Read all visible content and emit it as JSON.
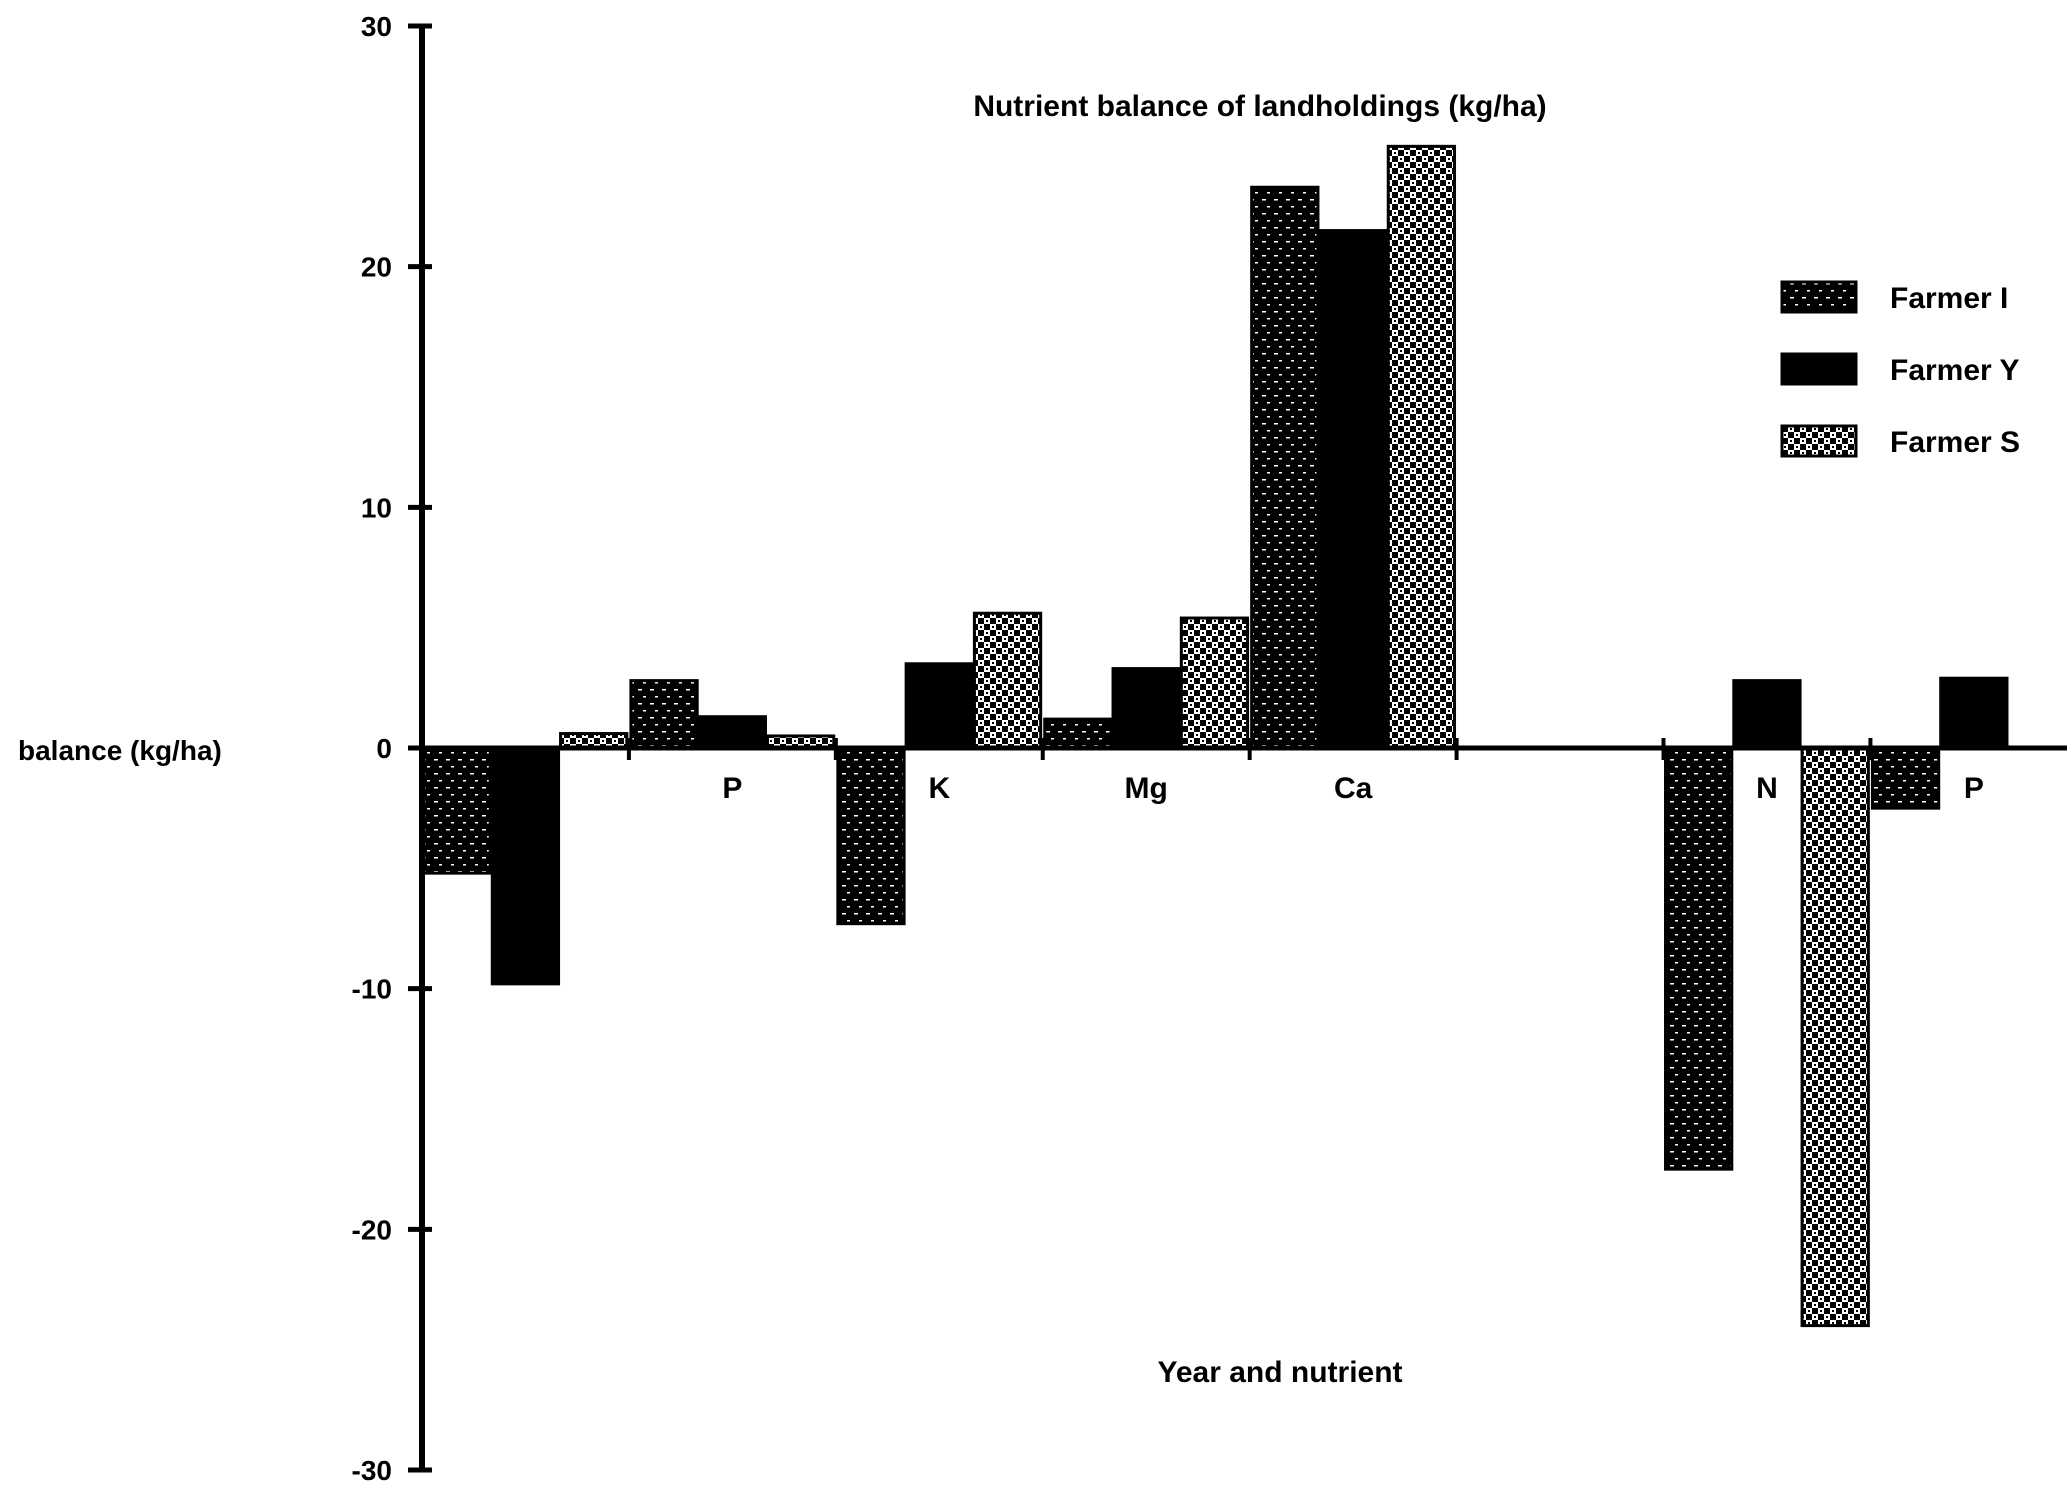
{
  "chart_data": {
    "type": "bar",
    "title": "Nutrient balance of landholdings (kg/ha)",
    "xlabel": "Year and nutrient",
    "ylabel": "balance (kg/ha)",
    "ylim": [
      -30,
      30
    ],
    "yticks": [
      30,
      20,
      10,
      0,
      -10,
      -20,
      -30
    ],
    "grid": false,
    "legend_position": "right",
    "categories": [
      "N",
      "P",
      "K",
      "Mg",
      "Ca",
      "",
      "N",
      "P"
    ],
    "series": [
      {
        "name": "Farmer I",
        "pattern": "stipple",
        "values": [
          -5.2,
          2.8,
          -7.3,
          1.2,
          23.3,
          null,
          -17.5,
          -2.5
        ]
      },
      {
        "name": "Farmer Y",
        "pattern": "solid",
        "values": [
          -9.8,
          1.3,
          3.5,
          3.3,
          21.5,
          null,
          2.8,
          2.9
        ]
      },
      {
        "name": "Farmer S",
        "pattern": "checker",
        "values": [
          0.6,
          0.5,
          5.6,
          5.4,
          25.0,
          null,
          -24.0,
          null
        ]
      }
    ]
  }
}
